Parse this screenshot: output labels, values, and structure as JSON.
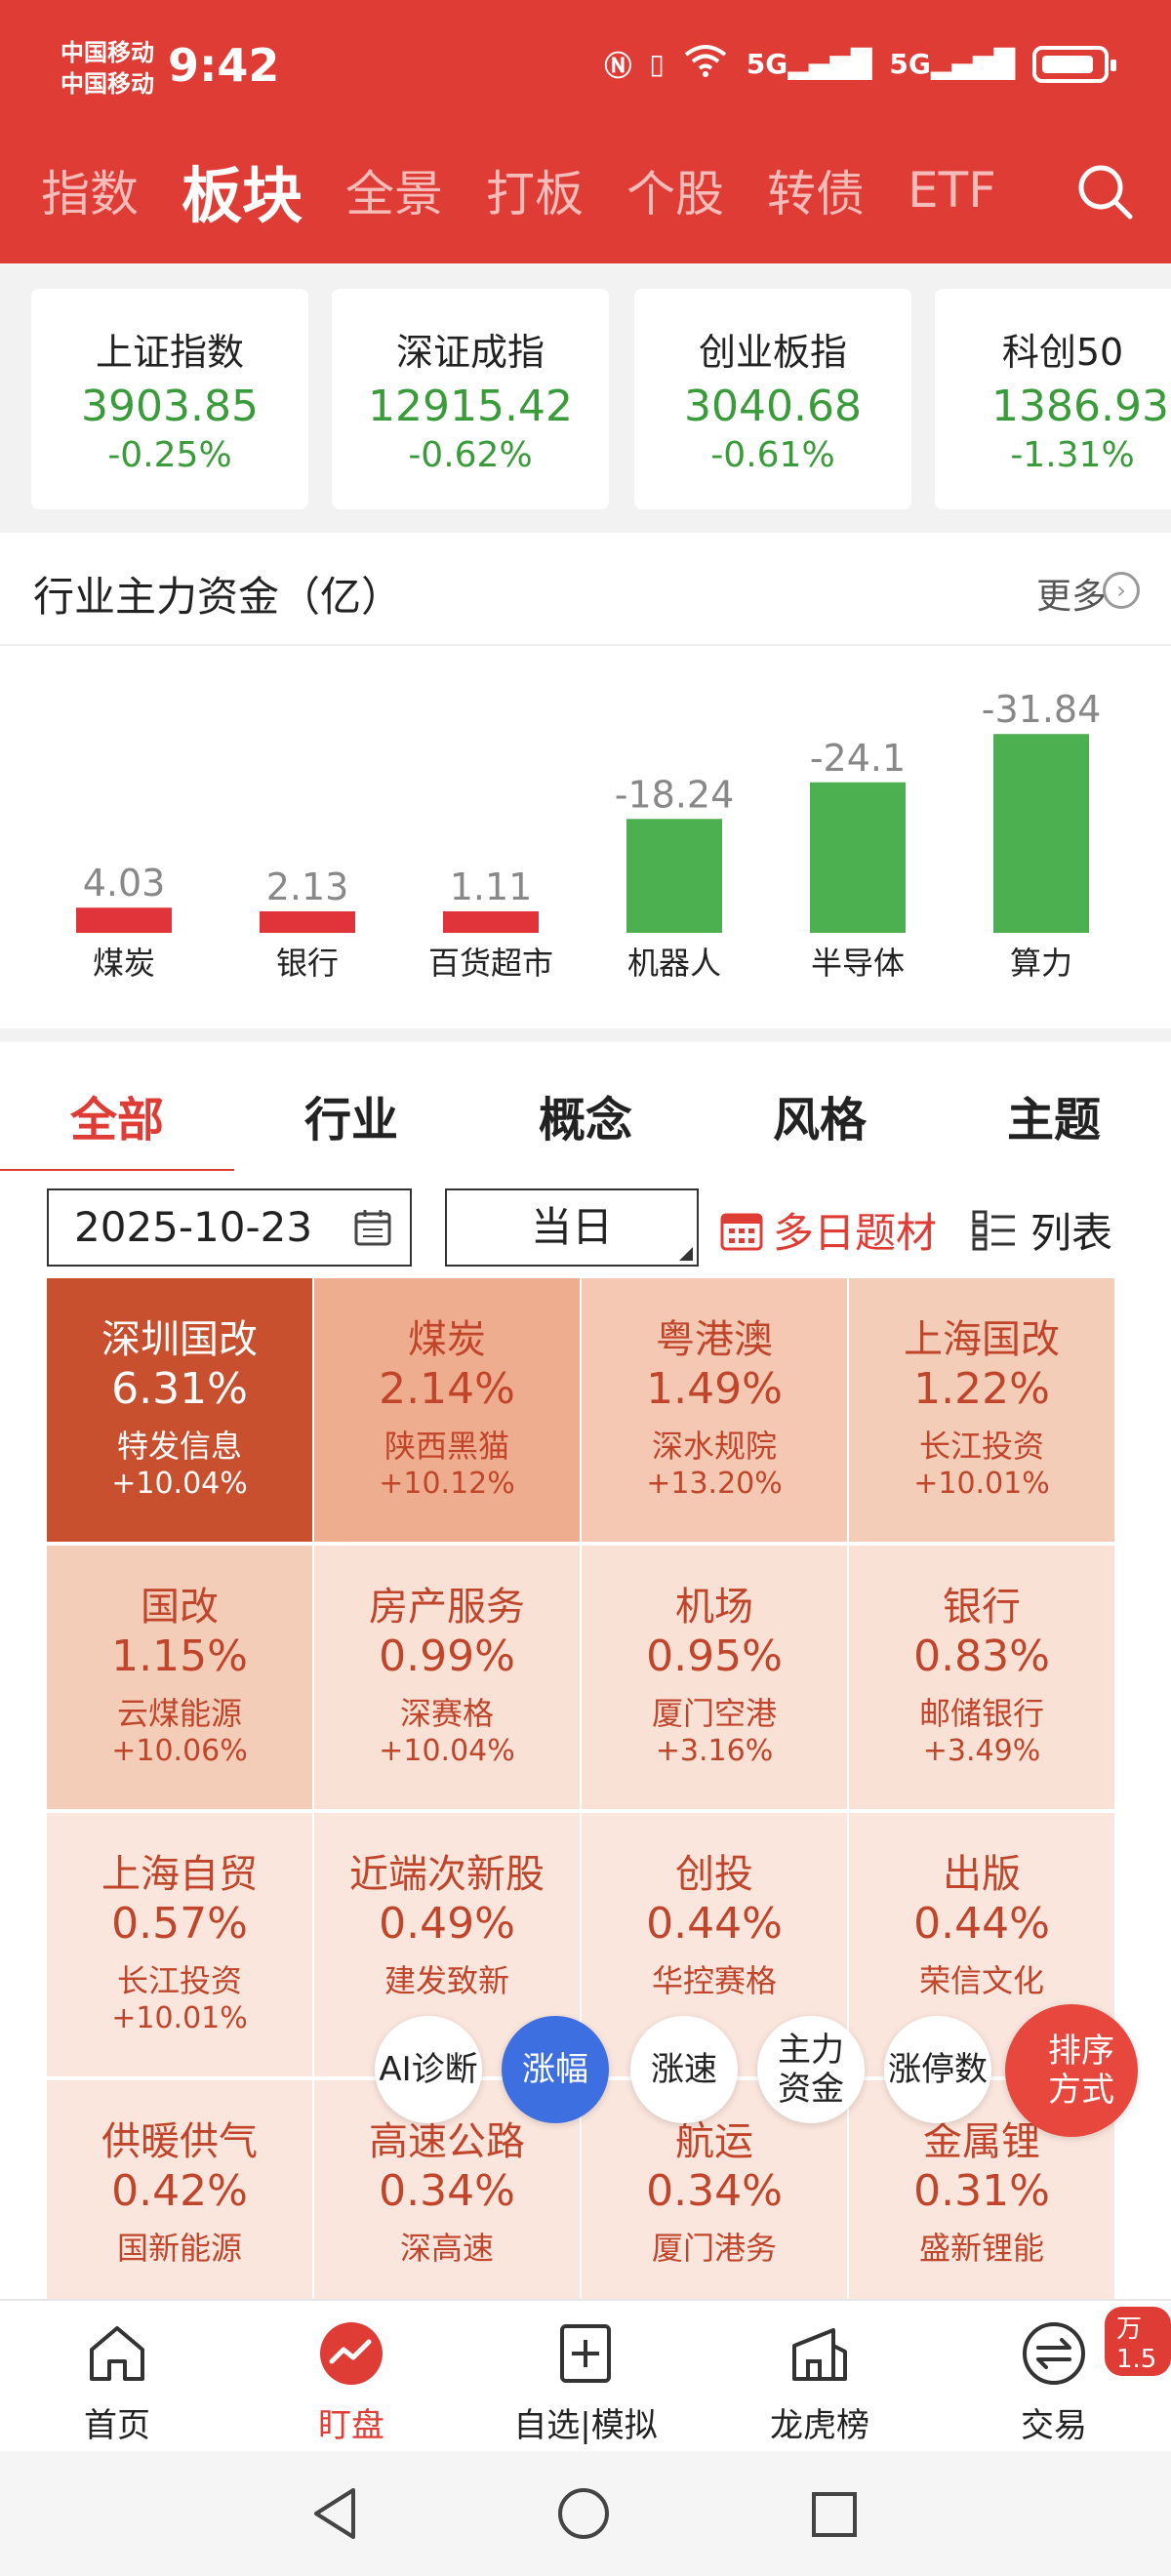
{
  "status_bar": {
    "carrier1": "中国移动",
    "carrier2": "中国移动",
    "time": "9:42",
    "net1": "5G",
    "net2": "5G"
  },
  "top_nav": {
    "items": [
      "指数",
      "板块",
      "全景",
      "打板",
      "个股",
      "转债",
      "ETF"
    ],
    "active_index": 1
  },
  "indices": [
    {
      "name": "上证指数",
      "value": "3903.85",
      "change": "-0.25%"
    },
    {
      "name": "深证成指",
      "value": "12915.42",
      "change": "-0.62%"
    },
    {
      "name": "创业板指",
      "value": "3040.68",
      "change": "-0.61%"
    },
    {
      "name": "科创50",
      "value": "1386.93",
      "change": "-1.31%"
    }
  ],
  "flow": {
    "title": "行业主力资金（亿）",
    "more": "更多"
  },
  "chart_data": {
    "type": "bar",
    "categories": [
      "煤炭",
      "银行",
      "百货超市",
      "机器人",
      "半导体",
      "算力"
    ],
    "values": [
      4.03,
      2.13,
      1.11,
      -18.24,
      -24.1,
      -31.84
    ],
    "labels": [
      "4.03",
      "2.13",
      "1.11",
      "-18.24",
      "-24.1",
      "-31.84"
    ],
    "colors": {
      "positive": "#e0343a",
      "negative": "#4caf50"
    },
    "title": "",
    "xlabel": "",
    "ylabel": ""
  },
  "tabs": {
    "items": [
      "全部",
      "行业",
      "概念",
      "风格",
      "主题"
    ],
    "active_index": 0
  },
  "controls": {
    "date": "2025-10-23",
    "period": "当日",
    "multi_day": "多日题材",
    "list": "列表"
  },
  "heatmap": [
    {
      "name": "深圳国改",
      "pct": "6.31%",
      "stock": "特发信息",
      "stock_pct": "+10.04%",
      "bg": "#c9502f",
      "fg": "#ffffff"
    },
    {
      "name": "煤炭",
      "pct": "2.14%",
      "stock": "陕西黑猫",
      "stock_pct": "+10.12%",
      "bg": "#efad8f",
      "fg": "#c0452a"
    },
    {
      "name": "粤港澳",
      "pct": "1.49%",
      "stock": "深水规院",
      "stock_pct": "+13.20%",
      "bg": "#f4c8b3",
      "fg": "#c0452a"
    },
    {
      "name": "上海国改",
      "pct": "1.22%",
      "stock": "长江投资",
      "stock_pct": "+10.01%",
      "bg": "#f4cdb9",
      "fg": "#c0452a"
    },
    {
      "name": "国改",
      "pct": "1.15%",
      "stock": "云煤能源",
      "stock_pct": "+10.06%",
      "bg": "#f4cdb9",
      "fg": "#c0452a"
    },
    {
      "name": "房产服务",
      "pct": "0.99%",
      "stock": "深赛格",
      "stock_pct": "+10.04%",
      "bg": "#f9e1d6",
      "fg": "#c0452a"
    },
    {
      "name": "机场",
      "pct": "0.95%",
      "stock": "厦门空港",
      "stock_pct": "+3.16%",
      "bg": "#f9e1d6",
      "fg": "#c0452a"
    },
    {
      "name": "银行",
      "pct": "0.83%",
      "stock": "邮储银行",
      "stock_pct": "+3.49%",
      "bg": "#f9e1d6",
      "fg": "#c0452a"
    },
    {
      "name": "上海自贸",
      "pct": "0.57%",
      "stock": "长江投资",
      "stock_pct": "+10.01%",
      "bg": "#fbe6dd",
      "fg": "#c0452a"
    },
    {
      "name": "近端次新股",
      "pct": "0.49%",
      "stock": "建发致新",
      "stock_pct": "",
      "bg": "#fbe6dd",
      "fg": "#c0452a"
    },
    {
      "name": "创投",
      "pct": "0.44%",
      "stock": "华控赛格",
      "stock_pct": "",
      "bg": "#fbe6dd",
      "fg": "#c0452a"
    },
    {
      "name": "出版",
      "pct": "0.44%",
      "stock": "荣信文化",
      "stock_pct": "",
      "bg": "#fbe6dd",
      "fg": "#c0452a"
    },
    {
      "name": "供暖供气",
      "pct": "0.42%",
      "stock": "国新能源",
      "stock_pct": "",
      "bg": "#fbe6dd",
      "fg": "#c0452a"
    },
    {
      "name": "高速公路",
      "pct": "0.34%",
      "stock": "深高速",
      "stock_pct": "",
      "bg": "#fbe6dd",
      "fg": "#c0452a"
    },
    {
      "name": "航运",
      "pct": "0.34%",
      "stock": "厦门港务",
      "stock_pct": "",
      "bg": "#fbe6dd",
      "fg": "#c0452a"
    },
    {
      "name": "金属锂",
      "pct": "0.31%",
      "stock": "盛新锂能",
      "stock_pct": "",
      "bg": "#fbe6dd",
      "fg": "#c0452a"
    }
  ],
  "sort_bar": {
    "ai": "AI诊断",
    "rise": "涨幅",
    "speed": "涨速",
    "capital_line1": "主力",
    "capital_line2": "资金",
    "limit": "涨停数",
    "sort_line1": "排序",
    "sort_line2": "方式"
  },
  "bottom_nav": {
    "items": [
      "首页",
      "盯盘",
      "自选|模拟",
      "龙虎榜",
      "交易"
    ],
    "active_index": 1,
    "badge": "万1.5"
  }
}
